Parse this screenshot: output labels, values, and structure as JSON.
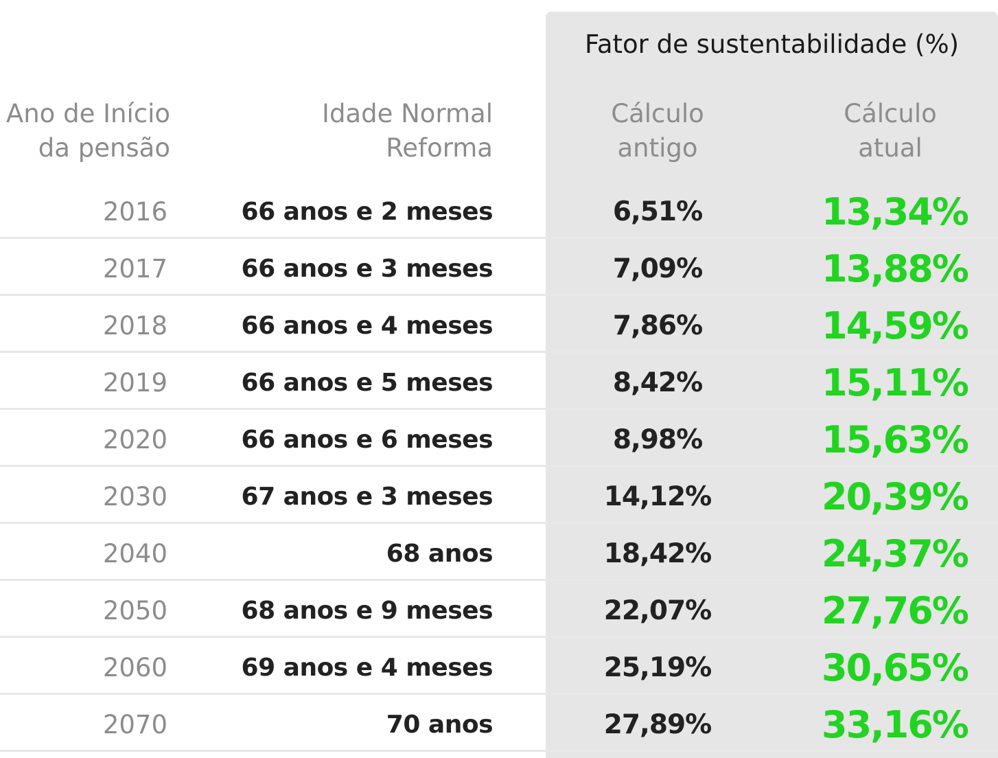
{
  "colors": {
    "highlight_green": "#22d322",
    "shade": "#e6e6e6"
  },
  "chart_data": {
    "type": "table",
    "group_header": "Fator de sustentabilidade (%)",
    "columns": [
      "Ano de Início\nda pensão",
      "Idade Normal\nReforma",
      "Cálculo\nantigo",
      "Cálculo\natual"
    ],
    "rows": [
      {
        "year": "2016",
        "age": "66 anos e 2 meses",
        "old": "6,51%",
        "new": "13,34%"
      },
      {
        "year": "2017",
        "age": "66 anos e 3 meses",
        "old": "7,09%",
        "new": "13,88%"
      },
      {
        "year": "2018",
        "age": "66 anos e 4 meses",
        "old": "7,86%",
        "new": "14,59%"
      },
      {
        "year": "2019",
        "age": "66 anos e 5 meses",
        "old": "8,42%",
        "new": "15,11%"
      },
      {
        "year": "2020",
        "age": "66 anos e 6 meses",
        "old": "8,98%",
        "new": "15,63%"
      },
      {
        "year": "2030",
        "age": "67 anos e 3 meses",
        "old": "14,12%",
        "new": "20,39%"
      },
      {
        "year": "2040",
        "age": "68 anos",
        "old": "18,42%",
        "new": "24,37%"
      },
      {
        "year": "2050",
        "age": "68 anos e 9 meses",
        "old": "22,07%",
        "new": "27,76%"
      },
      {
        "year": "2060",
        "age": "69 anos e 4 meses",
        "old": "25,19%",
        "new": "30,65%"
      },
      {
        "year": "2070",
        "age": "70 anos",
        "old": "27,89%",
        "new": "33,16%"
      }
    ]
  }
}
